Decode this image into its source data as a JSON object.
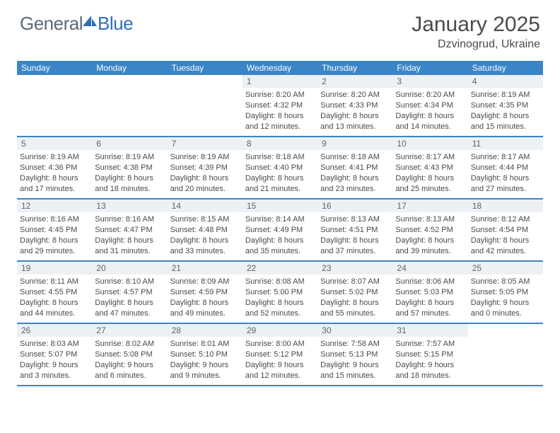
{
  "logo": {
    "text1": "General",
    "text2": "Blue"
  },
  "title": "January 2025",
  "location": "Dzvinogrud, Ukraine",
  "colors": {
    "headerBand": "#3b85c6",
    "dayBg": "#eef1f4",
    "text": "#4a4a4a",
    "logoGray": "#5b6b78",
    "logoBlue": "#2e6fb4"
  },
  "dayNames": [
    "Sunday",
    "Monday",
    "Tuesday",
    "Wednesday",
    "Thursday",
    "Friday",
    "Saturday"
  ],
  "weeks": [
    [
      null,
      null,
      null,
      {
        "n": 1,
        "sr": "8:20 AM",
        "ss": "4:32 PM",
        "d1": "8 hours",
        "d2": "12 minutes."
      },
      {
        "n": 2,
        "sr": "8:20 AM",
        "ss": "4:33 PM",
        "d1": "8 hours",
        "d2": "13 minutes."
      },
      {
        "n": 3,
        "sr": "8:20 AM",
        "ss": "4:34 PM",
        "d1": "8 hours",
        "d2": "14 minutes."
      },
      {
        "n": 4,
        "sr": "8:19 AM",
        "ss": "4:35 PM",
        "d1": "8 hours",
        "d2": "15 minutes."
      }
    ],
    [
      {
        "n": 5,
        "sr": "8:19 AM",
        "ss": "4:36 PM",
        "d1": "8 hours",
        "d2": "17 minutes."
      },
      {
        "n": 6,
        "sr": "8:19 AM",
        "ss": "4:38 PM",
        "d1": "8 hours",
        "d2": "18 minutes."
      },
      {
        "n": 7,
        "sr": "8:19 AM",
        "ss": "4:39 PM",
        "d1": "8 hours",
        "d2": "20 minutes."
      },
      {
        "n": 8,
        "sr": "8:18 AM",
        "ss": "4:40 PM",
        "d1": "8 hours",
        "d2": "21 minutes."
      },
      {
        "n": 9,
        "sr": "8:18 AM",
        "ss": "4:41 PM",
        "d1": "8 hours",
        "d2": "23 minutes."
      },
      {
        "n": 10,
        "sr": "8:17 AM",
        "ss": "4:43 PM",
        "d1": "8 hours",
        "d2": "25 minutes."
      },
      {
        "n": 11,
        "sr": "8:17 AM",
        "ss": "4:44 PM",
        "d1": "8 hours",
        "d2": "27 minutes."
      }
    ],
    [
      {
        "n": 12,
        "sr": "8:16 AM",
        "ss": "4:45 PM",
        "d1": "8 hours",
        "d2": "29 minutes."
      },
      {
        "n": 13,
        "sr": "8:16 AM",
        "ss": "4:47 PM",
        "d1": "8 hours",
        "d2": "31 minutes."
      },
      {
        "n": 14,
        "sr": "8:15 AM",
        "ss": "4:48 PM",
        "d1": "8 hours",
        "d2": "33 minutes."
      },
      {
        "n": 15,
        "sr": "8:14 AM",
        "ss": "4:49 PM",
        "d1": "8 hours",
        "d2": "35 minutes."
      },
      {
        "n": 16,
        "sr": "8:13 AM",
        "ss": "4:51 PM",
        "d1": "8 hours",
        "d2": "37 minutes."
      },
      {
        "n": 17,
        "sr": "8:13 AM",
        "ss": "4:52 PM",
        "d1": "8 hours",
        "d2": "39 minutes."
      },
      {
        "n": 18,
        "sr": "8:12 AM",
        "ss": "4:54 PM",
        "d1": "8 hours",
        "d2": "42 minutes."
      }
    ],
    [
      {
        "n": 19,
        "sr": "8:11 AM",
        "ss": "4:55 PM",
        "d1": "8 hours",
        "d2": "44 minutes."
      },
      {
        "n": 20,
        "sr": "8:10 AM",
        "ss": "4:57 PM",
        "d1": "8 hours",
        "d2": "47 minutes."
      },
      {
        "n": 21,
        "sr": "8:09 AM",
        "ss": "4:59 PM",
        "d1": "8 hours",
        "d2": "49 minutes."
      },
      {
        "n": 22,
        "sr": "8:08 AM",
        "ss": "5:00 PM",
        "d1": "8 hours",
        "d2": "52 minutes."
      },
      {
        "n": 23,
        "sr": "8:07 AM",
        "ss": "5:02 PM",
        "d1": "8 hours",
        "d2": "55 minutes."
      },
      {
        "n": 24,
        "sr": "8:06 AM",
        "ss": "5:03 PM",
        "d1": "8 hours",
        "d2": "57 minutes."
      },
      {
        "n": 25,
        "sr": "8:05 AM",
        "ss": "5:05 PM",
        "d1": "9 hours",
        "d2": "0 minutes."
      }
    ],
    [
      {
        "n": 26,
        "sr": "8:03 AM",
        "ss": "5:07 PM",
        "d1": "9 hours",
        "d2": "3 minutes."
      },
      {
        "n": 27,
        "sr": "8:02 AM",
        "ss": "5:08 PM",
        "d1": "9 hours",
        "d2": "6 minutes."
      },
      {
        "n": 28,
        "sr": "8:01 AM",
        "ss": "5:10 PM",
        "d1": "9 hours",
        "d2": "9 minutes."
      },
      {
        "n": 29,
        "sr": "8:00 AM",
        "ss": "5:12 PM",
        "d1": "9 hours",
        "d2": "12 minutes."
      },
      {
        "n": 30,
        "sr": "7:58 AM",
        "ss": "5:13 PM",
        "d1": "9 hours",
        "d2": "15 minutes."
      },
      {
        "n": 31,
        "sr": "7:57 AM",
        "ss": "5:15 PM",
        "d1": "9 hours",
        "d2": "18 minutes."
      },
      null
    ]
  ],
  "labels": {
    "sunrise": "Sunrise:",
    "sunset": "Sunset:",
    "daylight": "Daylight:",
    "and": "and"
  }
}
